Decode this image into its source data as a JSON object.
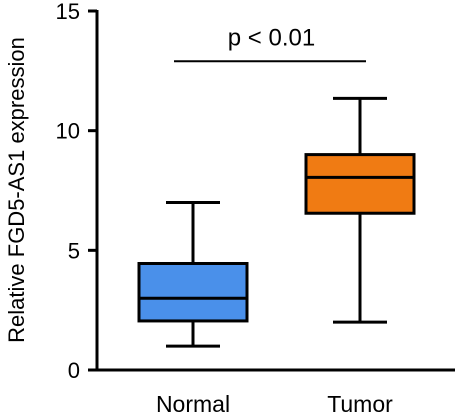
{
  "chart_data": {
    "type": "box",
    "ylabel": "Relative FGD5-AS1 expression",
    "xlabel": "",
    "ylim": [
      0,
      15
    ],
    "yticks": [
      0,
      5,
      10,
      15
    ],
    "categories": [
      "Normal",
      "Tumor"
    ],
    "boxes": [
      {
        "label": "Normal",
        "min": 1.0,
        "q1": 2.05,
        "median": 3.0,
        "q3": 4.45,
        "max": 7.0,
        "color": "#4a90ea"
      },
      {
        "label": "Tumor",
        "min": 2.0,
        "q1": 6.55,
        "median": 8.05,
        "q3": 9.0,
        "max": 11.35,
        "color": "#f07b13"
      }
    ],
    "annotation": {
      "text": "p < 0.01",
      "between": [
        "Normal",
        "Tumor"
      ],
      "y": 12.9
    },
    "grid": false,
    "legend": "none"
  }
}
